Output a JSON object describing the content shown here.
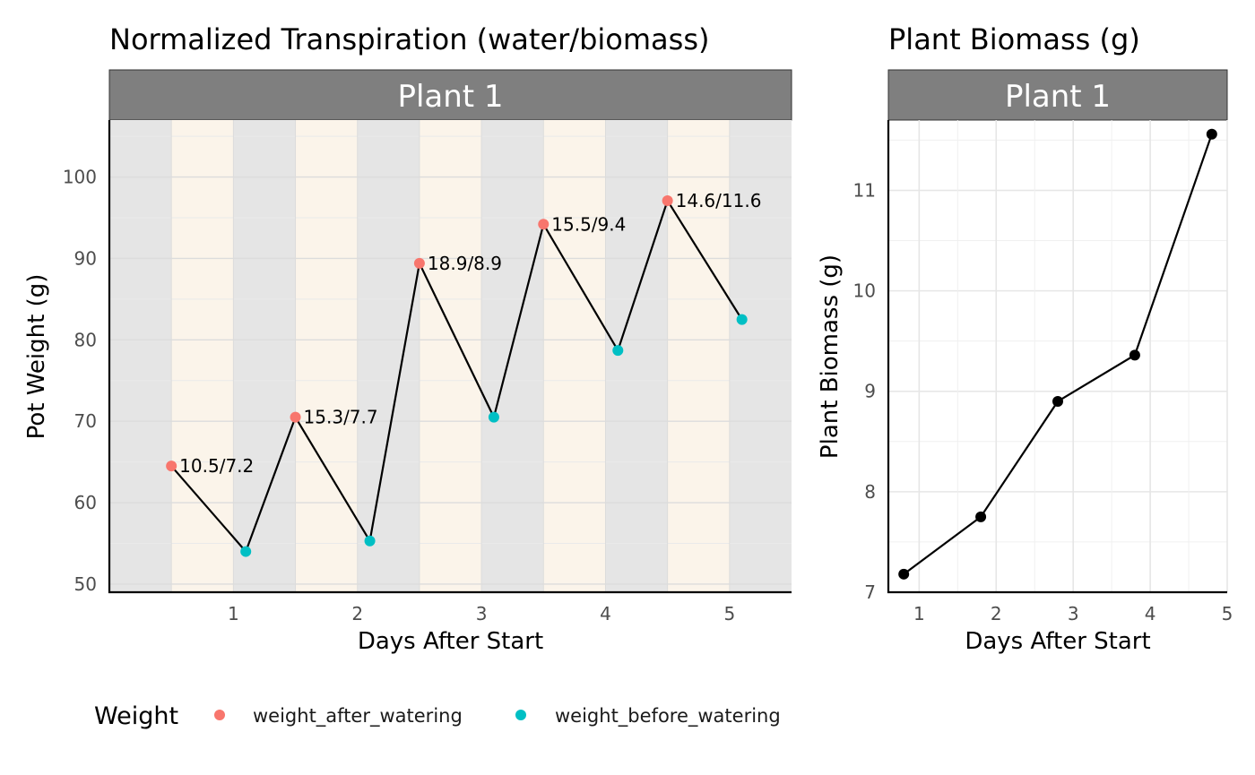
{
  "colors": {
    "after": "#F8766D",
    "before": "#00BFC4",
    "night_band": "#E5E5E5",
    "day_band": "#FBF4EA",
    "strip": "#7F7F7F",
    "line": "#000000"
  },
  "legend": {
    "title": "Weight",
    "items": [
      {
        "label": "weight_after_watering",
        "color": "#F8766D"
      },
      {
        "label": "weight_before_watering",
        "color": "#00BFC4"
      }
    ]
  },
  "chart_data": [
    {
      "type": "line",
      "title": "Normalized Transpiration (water/biomass)",
      "facet": "Plant 1",
      "xlabel": "Days After Start",
      "ylabel": "Pot Weight (g)",
      "xlim": [
        0,
        5.5
      ],
      "ylim": [
        49,
        107
      ],
      "xticks": [
        1,
        2,
        3,
        4,
        5
      ],
      "yticks": [
        50,
        60,
        70,
        80,
        90,
        100
      ],
      "background_bands": {
        "width": 0.5,
        "pattern": [
          "night",
          "day"
        ],
        "from": 0,
        "to": 5.5
      },
      "series": [
        {
          "name": "weight_after_watering",
          "points": [
            {
              "x": 0.5,
              "y": 64.5,
              "label": "10.5/7.2"
            },
            {
              "x": 1.5,
              "y": 70.5,
              "label": "15.3/7.7"
            },
            {
              "x": 2.5,
              "y": 89.4,
              "label": "18.9/8.9"
            },
            {
              "x": 3.5,
              "y": 94.2,
              "label": "15.5/9.4"
            },
            {
              "x": 4.5,
              "y": 97.1,
              "label": "14.6/11.6"
            }
          ]
        },
        {
          "name": "weight_before_watering",
          "points": [
            {
              "x": 1.1,
              "y": 54.0
            },
            {
              "x": 2.1,
              "y": 55.3
            },
            {
              "x": 3.1,
              "y": 70.5
            },
            {
              "x": 4.1,
              "y": 78.7
            },
            {
              "x": 5.1,
              "y": 82.5
            }
          ]
        }
      ]
    },
    {
      "type": "line",
      "title": "Plant Biomass (g)",
      "facet": "Plant 1",
      "xlabel": "Days After Start",
      "ylabel": "Plant Biomass (g)",
      "xlim": [
        0.6,
        5
      ],
      "ylim": [
        7,
        11.7
      ],
      "xticks": [
        1,
        2,
        3,
        4,
        5
      ],
      "yticks": [
        7,
        8,
        9,
        10,
        11
      ],
      "grid": true,
      "x": [
        0.8,
        1.8,
        2.8,
        3.8,
        4.8
      ],
      "y": [
        7.18,
        7.75,
        8.9,
        9.36,
        11.56
      ]
    }
  ]
}
